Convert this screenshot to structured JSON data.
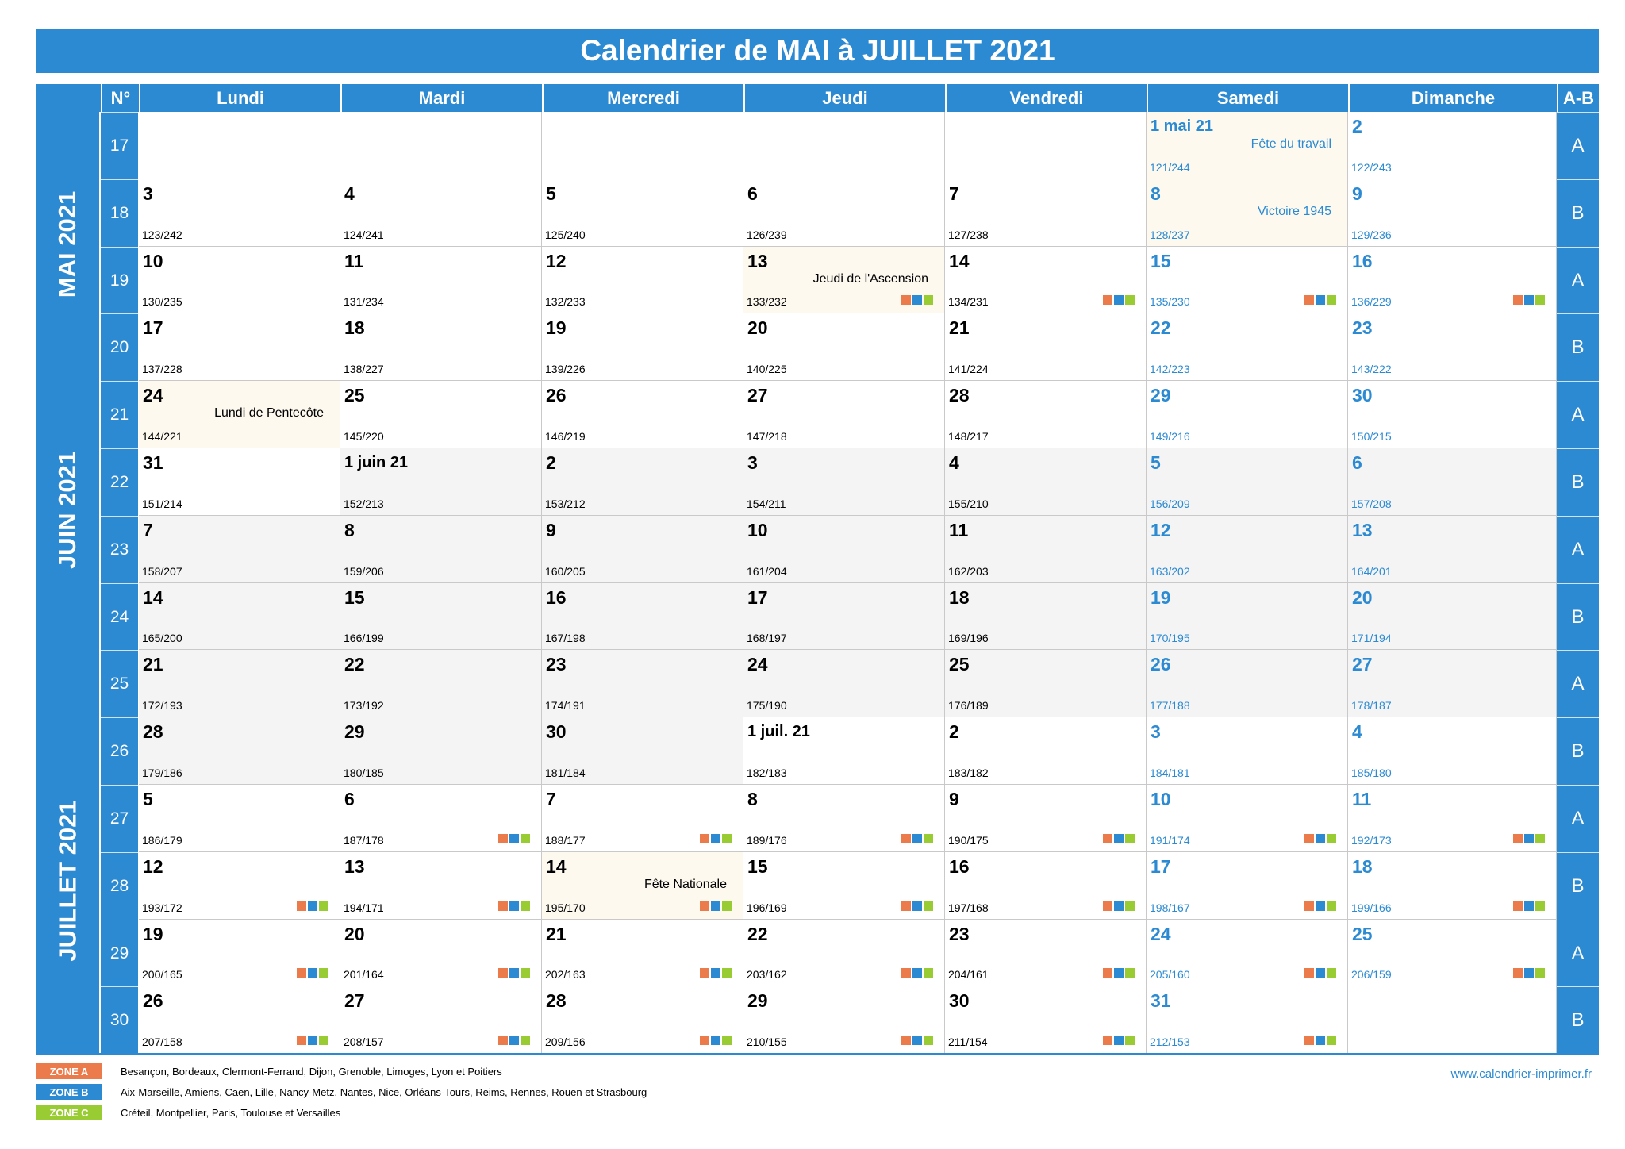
{
  "title": "Calendrier de MAI à JUILLET 2021",
  "headers": {
    "num": "N°",
    "days": [
      "Lundi",
      "Mardi",
      "Mercredi",
      "Jeudi",
      "Vendredi",
      "Samedi",
      "Dimanche"
    ],
    "ab": "A-B"
  },
  "months": [
    "MAI 2021",
    "JUIN 2021",
    "JUILLET 2021"
  ],
  "weeks": [
    {
      "num": "17",
      "ab": "A",
      "days": [
        null,
        null,
        null,
        null,
        null,
        {
          "d": "1 mai 21",
          "y": "121/244",
          "holiday": "Fête du travail"
        },
        {
          "d": "2",
          "y": "122/243"
        }
      ]
    },
    {
      "num": "18",
      "ab": "B",
      "days": [
        {
          "d": "3",
          "y": "123/242"
        },
        {
          "d": "4",
          "y": "124/241"
        },
        {
          "d": "5",
          "y": "125/240"
        },
        {
          "d": "6",
          "y": "126/239"
        },
        {
          "d": "7",
          "y": "127/238"
        },
        {
          "d": "8",
          "y": "128/237",
          "holiday": "Victoire 1945"
        },
        {
          "d": "9",
          "y": "129/236"
        }
      ]
    },
    {
      "num": "19",
      "ab": "A",
      "days": [
        {
          "d": "10",
          "y": "130/235"
        },
        {
          "d": "11",
          "y": "131/234"
        },
        {
          "d": "12",
          "y": "132/233"
        },
        {
          "d": "13",
          "y": "133/232",
          "holiday": "Jeudi de l'Ascension",
          "zones": true
        },
        {
          "d": "14",
          "y": "134/231",
          "zones": true
        },
        {
          "d": "15",
          "y": "135/230",
          "zones": true
        },
        {
          "d": "16",
          "y": "136/229",
          "zones": true
        }
      ]
    },
    {
      "num": "20",
      "ab": "B",
      "days": [
        {
          "d": "17",
          "y": "137/228"
        },
        {
          "d": "18",
          "y": "138/227"
        },
        {
          "d": "19",
          "y": "139/226"
        },
        {
          "d": "20",
          "y": "140/225"
        },
        {
          "d": "21",
          "y": "141/224"
        },
        {
          "d": "22",
          "y": "142/223"
        },
        {
          "d": "23",
          "y": "143/222"
        }
      ]
    },
    {
      "num": "21",
      "ab": "A",
      "days": [
        {
          "d": "24",
          "y": "144/221",
          "holiday": "Lundi de Pentecôte"
        },
        {
          "d": "25",
          "y": "145/220"
        },
        {
          "d": "26",
          "y": "146/219"
        },
        {
          "d": "27",
          "y": "147/218"
        },
        {
          "d": "28",
          "y": "148/217"
        },
        {
          "d": "29",
          "y": "149/216"
        },
        {
          "d": "30",
          "y": "150/215"
        }
      ]
    },
    {
      "num": "22",
      "ab": "B",
      "days": [
        {
          "d": "31",
          "y": "151/214"
        },
        {
          "d": "1 juin 21",
          "y": "152/213",
          "grey": true
        },
        {
          "d": "2",
          "y": "153/212",
          "grey": true
        },
        {
          "d": "3",
          "y": "154/211",
          "grey": true
        },
        {
          "d": "4",
          "y": "155/210",
          "grey": true
        },
        {
          "d": "5",
          "y": "156/209",
          "grey": true
        },
        {
          "d": "6",
          "y": "157/208",
          "grey": true
        }
      ]
    },
    {
      "num": "23",
      "ab": "A",
      "days": [
        {
          "d": "7",
          "y": "158/207",
          "grey": true
        },
        {
          "d": "8",
          "y": "159/206",
          "grey": true
        },
        {
          "d": "9",
          "y": "160/205",
          "grey": true
        },
        {
          "d": "10",
          "y": "161/204",
          "grey": true
        },
        {
          "d": "11",
          "y": "162/203",
          "grey": true
        },
        {
          "d": "12",
          "y": "163/202",
          "grey": true
        },
        {
          "d": "13",
          "y": "164/201",
          "grey": true
        }
      ]
    },
    {
      "num": "24",
      "ab": "B",
      "days": [
        {
          "d": "14",
          "y": "165/200",
          "grey": true
        },
        {
          "d": "15",
          "y": "166/199",
          "grey": true
        },
        {
          "d": "16",
          "y": "167/198",
          "grey": true
        },
        {
          "d": "17",
          "y": "168/197",
          "grey": true
        },
        {
          "d": "18",
          "y": "169/196",
          "grey": true
        },
        {
          "d": "19",
          "y": "170/195",
          "grey": true
        },
        {
          "d": "20",
          "y": "171/194",
          "grey": true
        }
      ]
    },
    {
      "num": "25",
      "ab": "A",
      "days": [
        {
          "d": "21",
          "y": "172/193",
          "grey": true
        },
        {
          "d": "22",
          "y": "173/192",
          "grey": true
        },
        {
          "d": "23",
          "y": "174/191",
          "grey": true
        },
        {
          "d": "24",
          "y": "175/190",
          "grey": true
        },
        {
          "d": "25",
          "y": "176/189",
          "grey": true
        },
        {
          "d": "26",
          "y": "177/188",
          "grey": true
        },
        {
          "d": "27",
          "y": "178/187",
          "grey": true
        }
      ]
    },
    {
      "num": "26",
      "ab": "B",
      "days": [
        {
          "d": "28",
          "y": "179/186",
          "grey": true
        },
        {
          "d": "29",
          "y": "180/185",
          "grey": true
        },
        {
          "d": "30",
          "y": "181/184",
          "grey": true
        },
        {
          "d": "1 juil. 21",
          "y": "182/183"
        },
        {
          "d": "2",
          "y": "183/182"
        },
        {
          "d": "3",
          "y": "184/181"
        },
        {
          "d": "4",
          "y": "185/180"
        }
      ]
    },
    {
      "num": "27",
      "ab": "A",
      "days": [
        {
          "d": "5",
          "y": "186/179"
        },
        {
          "d": "6",
          "y": "187/178",
          "zones": true
        },
        {
          "d": "7",
          "y": "188/177",
          "zones": true
        },
        {
          "d": "8",
          "y": "189/176",
          "zones": true
        },
        {
          "d": "9",
          "y": "190/175",
          "zones": true
        },
        {
          "d": "10",
          "y": "191/174",
          "zones": true
        },
        {
          "d": "11",
          "y": "192/173",
          "zones": true
        }
      ]
    },
    {
      "num": "28",
      "ab": "B",
      "days": [
        {
          "d": "12",
          "y": "193/172",
          "zones": true
        },
        {
          "d": "13",
          "y": "194/171",
          "zones": true
        },
        {
          "d": "14",
          "y": "195/170",
          "holiday": "Fête Nationale",
          "zones": true
        },
        {
          "d": "15",
          "y": "196/169",
          "zones": true
        },
        {
          "d": "16",
          "y": "197/168",
          "zones": true
        },
        {
          "d": "17",
          "y": "198/167",
          "zones": true
        },
        {
          "d": "18",
          "y": "199/166",
          "zones": true
        }
      ]
    },
    {
      "num": "29",
      "ab": "A",
      "days": [
        {
          "d": "19",
          "y": "200/165",
          "zones": true
        },
        {
          "d": "20",
          "y": "201/164",
          "zones": true
        },
        {
          "d": "21",
          "y": "202/163",
          "zones": true
        },
        {
          "d": "22",
          "y": "203/162",
          "zones": true
        },
        {
          "d": "23",
          "y": "204/161",
          "zones": true
        },
        {
          "d": "24",
          "y": "205/160",
          "zones": true
        },
        {
          "d": "25",
          "y": "206/159",
          "zones": true
        }
      ]
    },
    {
      "num": "30",
      "ab": "B",
      "days": [
        {
          "d": "26",
          "y": "207/158",
          "zones": true
        },
        {
          "d": "27",
          "y": "208/157",
          "zones": true
        },
        {
          "d": "28",
          "y": "209/156",
          "zones": true
        },
        {
          "d": "29",
          "y": "210/155",
          "zones": true
        },
        {
          "d": "30",
          "y": "211/154",
          "zones": true
        },
        {
          "d": "31",
          "y": "212/153",
          "zones": true
        },
        null
      ]
    }
  ],
  "zones": [
    {
      "label": "ZONE A",
      "color": "#ec7b4c",
      "text": "Besançon, Bordeaux, Clermont-Ferrand, Dijon, Grenoble, Limoges, Lyon et Poitiers"
    },
    {
      "label": "ZONE B",
      "color": "#2b8ad2",
      "text": "Aix-Marseille, Amiens, Caen, Lille, Nancy-Metz, Nantes, Nice, Orléans-Tours, Reims, Rennes, Rouen et Strasbourg"
    },
    {
      "label": "ZONE C",
      "color": "#99cc33",
      "text": "Créteil, Montpellier, Paris, Toulouse et Versailles"
    }
  ],
  "website": "www.calendrier-imprimer.fr"
}
